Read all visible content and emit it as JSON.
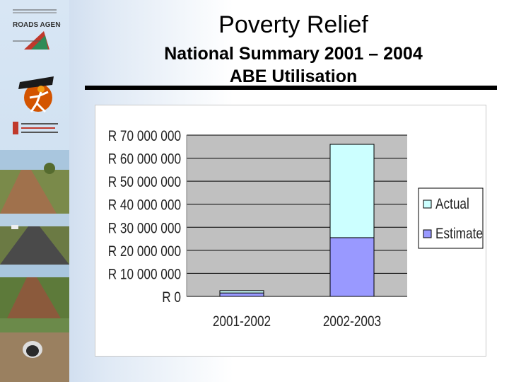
{
  "slide": {
    "title": "Poverty Relief",
    "subtitle1": "National Summary 2001 – 2004",
    "subtitle2": "ABE Utilisation"
  },
  "sidebar": {
    "roads_agency_text": "ROADS AGENCY",
    "photos": [
      "gravel-road-photo",
      "paved-road-photo",
      "dirt-road-photo",
      "culvert-photo"
    ]
  },
  "colors": {
    "actual": "#ccffff",
    "estimate": "#9999ff",
    "plot_bg": "#c0c0c0"
  },
  "chart_data": {
    "type": "bar",
    "stacked": true,
    "categories": [
      "2001-2002",
      "2002-2003"
    ],
    "series": [
      {
        "name": "Estimate",
        "values": [
          1500000,
          25500000
        ]
      },
      {
        "name": "Actual",
        "values": [
          1000000,
          40500000
        ]
      }
    ],
    "yticks": [
      "R 0",
      "R 10 000 000",
      "R 20 000 000",
      "R 30 000 000",
      "R 40 000 000",
      "R 50 000 000",
      "R 60 000 000",
      "R 70 000 000"
    ],
    "ylim": [
      0,
      70000000
    ],
    "legend": [
      "Actual",
      "Estimate"
    ],
    "legend_position": "right",
    "grid": true,
    "title": "",
    "xlabel": "",
    "ylabel": ""
  }
}
